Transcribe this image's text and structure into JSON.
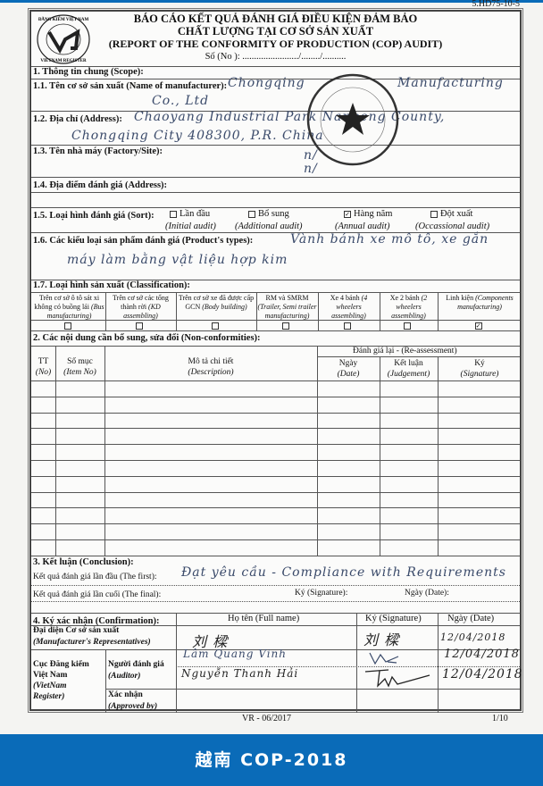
{
  "page_code": "5.HD75-10-5",
  "logo": {
    "top_text": "ĐĂNG KIỂM VIỆT NAM",
    "bottom_text": "VIETNAM REGISTER",
    "mark": "VR"
  },
  "header": {
    "line1": "BÁO CÁO KẾT QUẢ ĐÁNH GIÁ ĐIỀU KIỆN ĐẢM BẢO",
    "line2": "CHẤT LƯỢNG TẠI CƠ SỞ SẢN XUẤT",
    "line3": "(REPORT OF THE CONFORMITY OF PRODUCTION (COP) AUDIT)",
    "number": "Số (No ): ......................../......../.........."
  },
  "scope": {
    "title": "1.  Thông tin chung (Scope):",
    "manufacturer_label": "1.1. Tên cơ sở sản xuất (Name of manufacturer):",
    "manufacturer_value_1": "Chongqing",
    "manufacturer_value_2": "Manufacturing",
    "manufacturer_value_3": "Co., Ltd",
    "address_label": "1.2. Địa chỉ (Address):",
    "address_value_1": "Chaoyang  Industrial  Park  Nanpeng  County,",
    "address_value_2": "Chongqing  City  408300,  P.R. China",
    "factory_label": "1.3. Tên nhà máy (Factory/Site):",
    "factory_value": "n/",
    "audit_address_label": "1.4. Địa điểm đánh giá (Address):",
    "audit_address_value": "n/",
    "sort_label": "1.5. Loại hình đánh giá (Sort):",
    "sort_options": [
      {
        "vi": "Lần đầu",
        "en": "(Initial audit)",
        "checked": false
      },
      {
        "vi": "Bổ sung",
        "en": "(Additional audit)",
        "checked": false
      },
      {
        "vi": "Hàng năm",
        "en": "(Annual audit)",
        "checked": true
      },
      {
        "vi": "Đột xuất",
        "en": "(Occassional audit)",
        "checked": false
      }
    ],
    "types_label": "1.6. Các kiểu loại sản phẩm đánh giá (Product's types):",
    "types_value_1": "Vành bánh xe mô tô, xe gắn",
    "types_value_2": "máy làm bằng vật liệu hợp kim",
    "class_label": "1.7. Loại hình sản xuất (Classification):",
    "classes": [
      {
        "vi": "Trên cơ sở ô tô sát xi không có buồng lái",
        "en": "(Bus manufacturing)",
        "checked": false
      },
      {
        "vi": "Trên cơ sở các tổng thành rời",
        "en": "(KD assembling)",
        "checked": false
      },
      {
        "vi": "Trên cơ sở xe đã được cấp GCN",
        "en": "(Body building)",
        "checked": false
      },
      {
        "vi": "RM và SMRM",
        "en": "(Trailer, Semi trailer manufacturing)",
        "checked": false
      },
      {
        "vi": "Xe 4 bánh",
        "en": "(4 wheelers assembling)",
        "checked": false
      },
      {
        "vi": "Xe 2 bánh",
        "en": "(2 wheelers assembling)",
        "checked": false
      },
      {
        "vi": "Linh kiện",
        "en": "(Components manufacturing)",
        "checked": true
      }
    ]
  },
  "nonconf": {
    "title": "2. Các nội dung cần bổ sung, sửa đổi (Non-conformities):",
    "reassess": "Đánh giá lại - (Re-assessment)",
    "columns": [
      {
        "vi": "TT",
        "en": "(No)"
      },
      {
        "vi": "Số mục",
        "en": "(Item No)"
      },
      {
        "vi": "Mô tả chi tiết",
        "en": "(Description)"
      },
      {
        "vi": "Ngày",
        "en": "(Date)"
      },
      {
        "vi": "Kết luận",
        "en": "(Judgement)"
      },
      {
        "vi": "Ký",
        "en": "(Signature)"
      }
    ]
  },
  "conclusion": {
    "title": "3. Kết luận (Conclusion):",
    "first_label": "Kết quả đánh giá lần đầu (The first):",
    "first_value": "Đạt yêu cầu - Compliance with Requirements",
    "final_label": "Kết quả đánh giá lần cuối (The final):",
    "signature_label": "Ký (Signature):",
    "date_label": "Ngày (Date):"
  },
  "confirmation": {
    "title": "4. Ký xác nhận (Confirmation):",
    "col_name": "Họ tên (Full name)",
    "col_sig": "Ký (Signature)",
    "col_date": "Ngày (Date)",
    "rep_label_1": "Đại diện Cơ sở sản xuất",
    "rep_label_2": "(Manufacturer's Representatives)",
    "rep_name": "刘 樑",
    "rep_sig": "刘 樑",
    "rep_date": "12/04/2018",
    "vr_label_1": "Cục Đăng kiểm",
    "vr_label_2": "Việt Nam",
    "vr_label_3": "(VietNam",
    "vr_label_4": "Register)",
    "auditor_label_1": "Người đánh giá",
    "auditor_label_2": "(Auditor)",
    "auditor1_name": "Lâm Quang Vinh",
    "auditor1_date": "12/04/2018",
    "auditor2_name": "Nguyễn Thanh Hải",
    "auditor2_date": "12/04/2018",
    "approved_label_1": "Xác nhận",
    "approved_label_2": "(Approved by)"
  },
  "footer": {
    "form": "VR - 06/2017",
    "page": "1/10"
  },
  "banner": {
    "text": "越南 COP-2018",
    "color": "#0a6bb8"
  }
}
